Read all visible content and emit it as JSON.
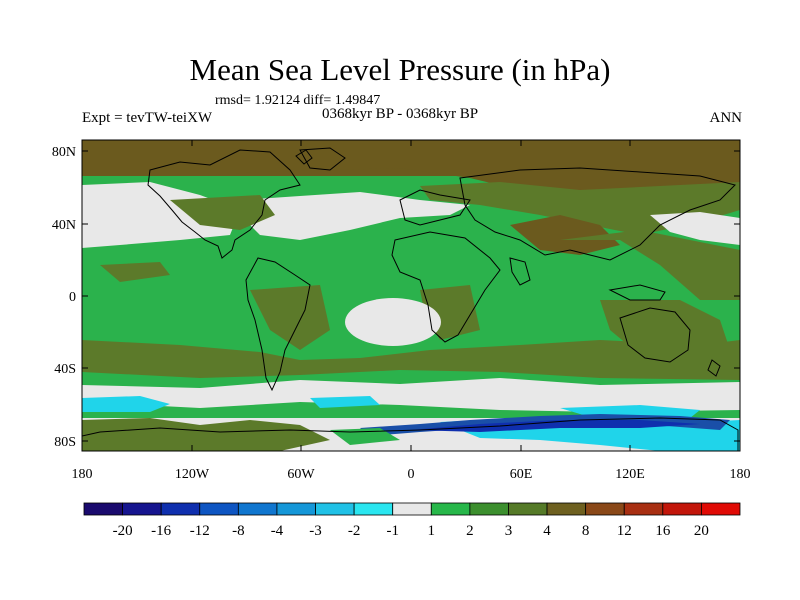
{
  "title": "Mean Sea Level Pressure (in hPa)",
  "stats": "rmsd= 1.92124 diff= 1.49847",
  "subtitle": "0368kyr BP - 0368kyr BP",
  "experiment": "Expt = tevTW-teiXW",
  "season": "ANN",
  "map": {
    "lat_labels": [
      "80N",
      "40N",
      "0",
      "40S",
      "80S"
    ],
    "lon_labels": [
      "180",
      "120W",
      "60W",
      "0",
      "60E",
      "120E",
      "180"
    ],
    "field_description": "mean sea level pressure difference"
  },
  "colorbar": {
    "labels": [
      "-20",
      "-16",
      "-12",
      "-8",
      "-4",
      "-3",
      "-2",
      "-1",
      "1",
      "2",
      "3",
      "4",
      "8",
      "12",
      "16",
      "20"
    ],
    "colors": [
      "#1a0a6e",
      "#16158f",
      "#0f2fae",
      "#0e55c2",
      "#1076cf",
      "#1597d8",
      "#20c1e6",
      "#2ae6f0",
      "#e8e8e8",
      "#27b74a",
      "#3c8f2e",
      "#557a28",
      "#6e6020",
      "#8a4818",
      "#a82f12",
      "#c2160a",
      "#e00a05"
    ]
  },
  "colors": {
    "positive_brown": "#6b5a1e",
    "olive_green": "#5c7a2a",
    "mid_green": "#2bb24c",
    "neutral_white": "#e8e8e8",
    "cyan": "#20d4ea",
    "deep_blue": "#1a4fa8",
    "coast": "#000000"
  }
}
